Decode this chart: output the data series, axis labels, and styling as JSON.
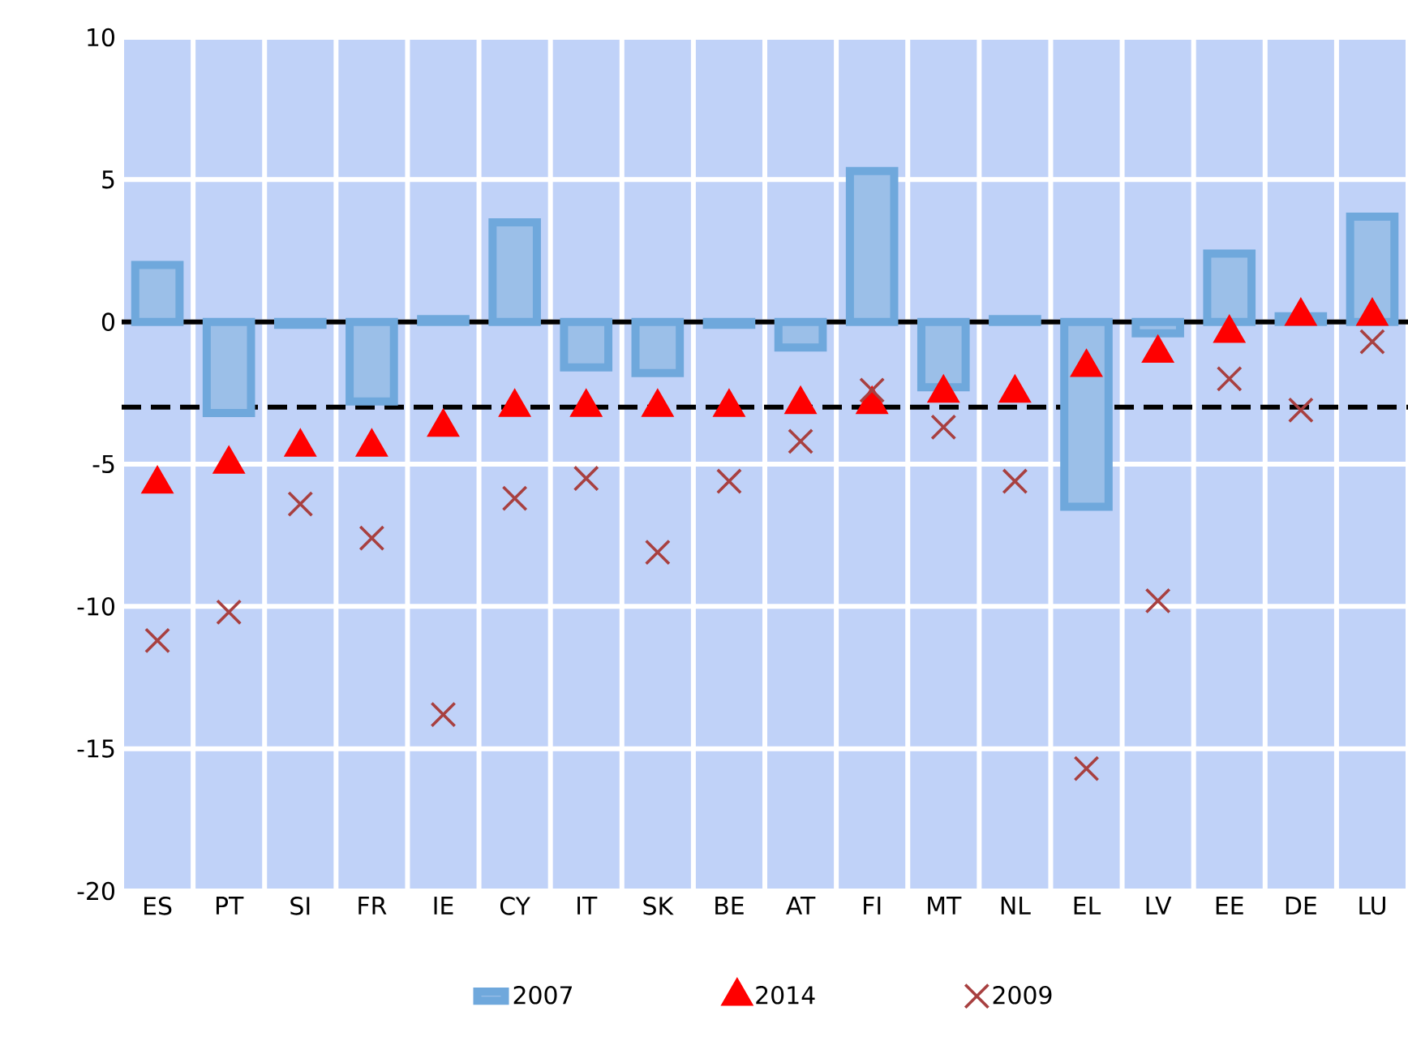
{
  "chart_data": {
    "type": "bar",
    "categories": [
      "ES",
      "PT",
      "SI",
      "FR",
      "IE",
      "CY",
      "IT",
      "SK",
      "BE",
      "AT",
      "FI",
      "MT",
      "NL",
      "EL",
      "LV",
      "EE",
      "DE",
      "LU"
    ],
    "series": [
      {
        "name": "2007",
        "color": "#6fa8dc",
        "values": [
          2.0,
          -3.2,
          -0.1,
          -2.8,
          0.1,
          3.5,
          -1.6,
          -1.8,
          -0.1,
          -0.9,
          5.3,
          -2.3,
          0.1,
          -6.5,
          -0.4,
          2.4,
          0.2,
          3.7
        ]
      },
      {
        "name": "2014",
        "type": "scatter",
        "marker": "triangle",
        "color": "#ff0000",
        "values": [
          -5.7,
          -5.0,
          -4.4,
          -4.4,
          -3.7,
          -3.0,
          -3.0,
          -3.0,
          -3.0,
          -2.9,
          -2.9,
          -2.5,
          -2.5,
          -1.6,
          -1.1,
          -0.4,
          0.2,
          0.2
        ]
      },
      {
        "name": "2009",
        "type": "scatter",
        "marker": "cross",
        "color": "#a84040",
        "values": [
          -11.2,
          -10.2,
          -6.4,
          -7.6,
          -13.8,
          -6.2,
          -5.5,
          -8.1,
          -5.6,
          -4.2,
          -2.4,
          -3.7,
          -5.6,
          -15.7,
          -9.8,
          -2.0,
          -3.1,
          -0.7
        ]
      }
    ],
    "ylim": [
      -20,
      10
    ],
    "yticks": [
      -20,
      -15,
      -10,
      -5,
      0,
      5,
      10
    ],
    "grid": true,
    "legend": "bottom",
    "ref_lines": [
      {
        "axis": "y",
        "value": 0,
        "color": "#000000",
        "line_style": "solid"
      },
      {
        "axis": "y",
        "value": -3,
        "color": "#000000",
        "line_style": "dashed"
      }
    ]
  }
}
